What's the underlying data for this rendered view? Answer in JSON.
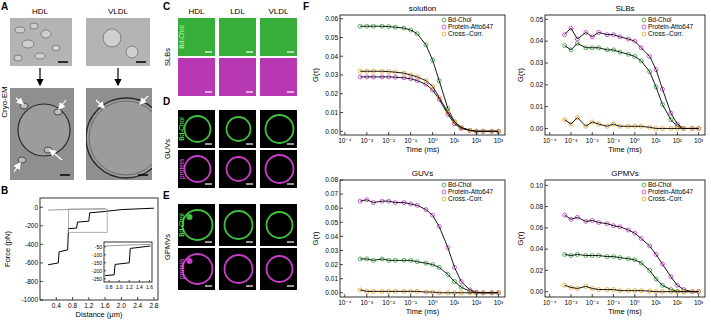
{
  "panel_labels": [
    "A",
    "B",
    "C",
    "D",
    "E",
    "F"
  ],
  "panel_a": {
    "columns": [
      "HDL",
      "VLDL"
    ],
    "row_label": "Cryo-EM"
  },
  "panel_cde": {
    "columns": [
      "HDL",
      "LDL",
      "VLDL"
    ],
    "rows": [
      {
        "label": "SLBs",
        "green_label": "Bd-Chol"
      },
      {
        "label": "GUVs",
        "green_label": "Bd-Chol",
        "magenta_label": "protein"
      },
      {
        "label": "GPMVs",
        "green_label": "Bd-Chol",
        "magenta_label": "protein"
      }
    ]
  },
  "chart_data": [
    {
      "type": "line",
      "xlabel": "Distance (µm)",
      "ylabel": "Force (pN)",
      "xlim": [
        0,
        2.9
      ],
      "ylim": [
        -1000,
        100
      ],
      "xticks": [
        0.4,
        0.8,
        1.2,
        1.6,
        {
          "value": 2,
          "label": "2.0"
        },
        2.4,
        2.8
      ],
      "yticks": [
        0,
        -200,
        -400,
        -600,
        -800,
        -1000
      ],
      "series": [
        {
          "color": "#000000",
          "x": [
            0.2,
            0.45,
            0.47,
            0.68,
            0.7,
            0.9,
            0.92,
            1.2,
            1.22,
            1.6,
            2.0,
            2.8
          ],
          "values": [
            -620,
            -600,
            -480,
            -460,
            -230,
            -225,
            -160,
            -150,
            -60,
            -45,
            -25,
            -10
          ]
        },
        {
          "color": "#9a9a9a",
          "x": [
            0.2,
            0.6,
            1.0,
            1.6
          ],
          "values": [
            -30,
            -25,
            -20,
            -15
          ]
        }
      ]
    },
    {
      "type": "line",
      "xlim": [
        0.7,
        1.65
      ],
      "ylim": [
        -270,
        -20
      ],
      "xticks": [
        0.8,
        {
          "value": 1,
          "label": "1.0"
        },
        1.2,
        1.4,
        1.6
      ],
      "yticks": [
        -50,
        -100,
        -150,
        -200,
        -250
      ],
      "series": [
        {
          "color": "#000000",
          "x": [
            0.72,
            0.9,
            0.92,
            1.2,
            1.22,
            1.62
          ],
          "values": [
            -230,
            -225,
            -160,
            -150,
            -60,
            -45
          ]
        },
        {
          "color": "#9a9a9a",
          "x": [
            0.72,
            1.1,
            1.62
          ],
          "values": [
            -45,
            -40,
            -35
          ]
        }
      ]
    },
    {
      "type": "scatter",
      "title": "solution",
      "xlabel": "Time (ms)",
      "ylabel": "G(τ)",
      "log": "x",
      "legend": "upper right",
      "xlim": [
        6e-05,
        2000
      ],
      "ylim": [
        -0.002,
        0.062
      ],
      "xticks": [
        {
          "value": 0.0001,
          "label": "10⁻⁴"
        },
        {
          "value": 0.001,
          "label": "10⁻³"
        },
        {
          "value": 0.01,
          "label": "10⁻²"
        },
        {
          "value": 0.1,
          "label": "10⁻¹"
        },
        {
          "value": 1,
          "label": "10⁰"
        },
        {
          "value": 10,
          "label": "10¹"
        },
        {
          "value": 100,
          "label": "10²"
        },
        {
          "value": 1000,
          "label": "10³"
        }
      ],
      "yticks": [
        {
          "value": 0,
          "label": "0.00"
        },
        0.01,
        0.02,
        0.03,
        0.04,
        0.05,
        0.06
      ],
      "x": [
        0.0005,
        0.001,
        0.002,
        0.005,
        0.01,
        0.02,
        0.05,
        0.1,
        0.2,
        0.5,
        1,
        2,
        5,
        10,
        20,
        50,
        100,
        200,
        500,
        1000
      ],
      "series": [
        {
          "name": "Bd-Chol",
          "color": "#3fae49",
          "marker": "circle",
          "line_style": "solid",
          "values": [
            0.056,
            0.056,
            0.056,
            0.056,
            0.0558,
            0.0555,
            0.055,
            0.054,
            0.052,
            0.046,
            0.038,
            0.027,
            0.012,
            0.005,
            0.002,
            0.0005,
            0,
            0,
            0,
            0
          ]
        },
        {
          "name": "Protein-Atto647",
          "color": "#d048d8",
          "marker": "circle",
          "line_style": "solid",
          "values": [
            0.029,
            0.029,
            0.029,
            0.029,
            0.029,
            0.0288,
            0.0285,
            0.028,
            0.027,
            0.025,
            0.022,
            0.017,
            0.009,
            0.004,
            0.0015,
            0.0005,
            0,
            0,
            0,
            0
          ]
        },
        {
          "name": "Cross.-Corr.",
          "color": "#f0a830",
          "marker": "circle",
          "line_style": "solid",
          "values": [
            0.032,
            0.032,
            0.032,
            0.032,
            0.0318,
            0.0315,
            0.031,
            0.03,
            0.029,
            0.027,
            0.024,
            0.018,
            0.01,
            0.005,
            0.002,
            0.0005,
            0,
            0,
            0,
            0
          ]
        }
      ]
    },
    {
      "type": "scatter",
      "title": "SLBs",
      "xlabel": "Time (ms)",
      "ylabel": "G(τ)",
      "log": "x",
      "legend": "upper right",
      "xlim": [
        6e-05,
        2000
      ],
      "ylim": [
        -0.003,
        0.052
      ],
      "xticks": [
        {
          "value": 0.0001,
          "label": "10⁻⁴"
        },
        {
          "value": 0.001,
          "label": "10⁻³"
        },
        {
          "value": 0.01,
          "label": "10⁻²"
        },
        {
          "value": 0.1,
          "label": "10⁻¹"
        },
        {
          "value": 1,
          "label": "10⁰"
        },
        {
          "value": 10,
          "label": "10¹"
        },
        {
          "value": 100,
          "label": "10²"
        },
        {
          "value": 1000,
          "label": "10³"
        }
      ],
      "yticks": [
        {
          "value": 0,
          "label": "0.00"
        },
        0.01,
        0.02,
        0.03,
        0.04,
        0.05
      ],
      "x": [
        0.0005,
        0.001,
        0.002,
        0.005,
        0.01,
        0.02,
        0.05,
        0.1,
        0.2,
        0.5,
        1,
        2,
        5,
        10,
        20,
        50,
        100,
        200,
        500,
        1000
      ],
      "series": [
        {
          "name": "Bd-Chol",
          "color": "#3fae49",
          "marker": "circle",
          "line_style": "solid",
          "values": [
            0.038,
            0.036,
            0.039,
            0.037,
            0.037,
            0.037,
            0.036,
            0.036,
            0.035,
            0.034,
            0.033,
            0.031,
            0.026,
            0.019,
            0.011,
            0.004,
            0.001,
            0,
            0,
            0
          ]
        },
        {
          "name": "Protein-Atto647",
          "color": "#d048d8",
          "marker": "circle",
          "line_style": "solid",
          "values": [
            0.043,
            0.046,
            0.041,
            0.044,
            0.042,
            0.044,
            0.043,
            0.043,
            0.042,
            0.041,
            0.04,
            0.037,
            0.033,
            0.027,
            0.018,
            0.007,
            0.002,
            0,
            0,
            0
          ]
        },
        {
          "name": "Cross.-Corr.",
          "color": "#f0a830",
          "marker": "circle",
          "line_style": "solid",
          "values": [
            0.004,
            0.002,
            0.005,
            0.001,
            0.003,
            0.002,
            0.001,
            0.002,
            0.001,
            0.001,
            0.001,
            0.001,
            0.0005,
            0,
            0,
            0,
            0,
            0,
            0,
            0
          ]
        }
      ]
    },
    {
      "type": "scatter",
      "title": "GUVs",
      "xlabel": "Time (ms)",
      "ylabel": "G(τ)",
      "log": "x",
      "legend": "upper right",
      "xlim": [
        6e-05,
        2000
      ],
      "ylim": [
        -0.003,
        0.08
      ],
      "xticks": [
        {
          "value": 0.0001,
          "label": "10⁻⁴"
        },
        {
          "value": 0.001,
          "label": "10⁻³"
        },
        {
          "value": 0.01,
          "label": "10⁻²"
        },
        {
          "value": 0.1,
          "label": "10⁻¹"
        },
        {
          "value": 1,
          "label": "10⁰"
        },
        {
          "value": 10,
          "label": "10¹"
        },
        {
          "value": 100,
          "label": "10²"
        },
        {
          "value": 1000,
          "label": "10³"
        }
      ],
      "yticks": [
        {
          "value": 0,
          "label": "0.00"
        },
        0.01,
        0.02,
        0.03,
        0.04,
        0.05,
        0.06,
        0.07,
        0.08
      ],
      "x": [
        0.0005,
        0.001,
        0.002,
        0.005,
        0.01,
        0.02,
        0.05,
        0.1,
        0.2,
        0.5,
        1,
        2,
        5,
        10,
        20,
        50,
        100,
        200,
        500,
        1000
      ],
      "series": [
        {
          "name": "Bd-Chol",
          "color": "#3fae49",
          "marker": "circle",
          "line_style": "solid",
          "values": [
            0.024,
            0.024,
            0.023,
            0.024,
            0.023,
            0.023,
            0.023,
            0.023,
            0.022,
            0.021,
            0.02,
            0.018,
            0.013,
            0.008,
            0.004,
            0.001,
            0,
            0,
            0,
            0
          ]
        },
        {
          "name": "Protein-Atto647",
          "color": "#d048d8",
          "marker": "circle",
          "line_style": "solid",
          "values": [
            0.065,
            0.066,
            0.064,
            0.065,
            0.065,
            0.064,
            0.064,
            0.063,
            0.062,
            0.059,
            0.055,
            0.047,
            0.032,
            0.018,
            0.008,
            0.002,
            0.0005,
            0,
            0,
            0
          ]
        },
        {
          "name": "Cross.-Corr.",
          "color": "#f0a830",
          "marker": "circle",
          "line_style": "solid",
          "values": [
            0.002,
            0.001,
            0.001,
            0.001,
            0.001,
            0.001,
            0.001,
            0.001,
            0.001,
            0.0005,
            0.0005,
            0,
            0,
            0,
            0,
            0,
            0,
            0,
            0,
            0
          ]
        }
      ]
    },
    {
      "type": "scatter",
      "title": "GPMVs",
      "xlabel": "Time (ms)",
      "ylabel": "G(τ)",
      "log": "x",
      "legend": "upper right",
      "xlim": [
        6e-05,
        2000
      ],
      "ylim": [
        -0.005,
        0.105
      ],
      "xticks": [
        {
          "value": 0.0001,
          "label": "10⁻⁴"
        },
        {
          "value": 0.001,
          "label": "10⁻³"
        },
        {
          "value": 0.01,
          "label": "10⁻²"
        },
        {
          "value": 0.1,
          "label": "10⁻¹"
        },
        {
          "value": 1,
          "label": "10⁰"
        },
        {
          "value": 10,
          "label": "10¹"
        },
        {
          "value": 100,
          "label": "10²"
        },
        {
          "value": 1000,
          "label": "10³"
        }
      ],
      "yticks": [
        {
          "value": 0,
          "label": "0.00"
        },
        0.02,
        0.04,
        0.06,
        0.08,
        {
          "value": 0.1,
          "label": "0.10"
        }
      ],
      "x": [
        0.0005,
        0.001,
        0.002,
        0.005,
        0.01,
        0.02,
        0.05,
        0.1,
        0.2,
        0.5,
        1,
        2,
        5,
        10,
        20,
        50,
        100,
        200,
        500,
        1000
      ],
      "series": [
        {
          "name": "Bd-Chol",
          "color": "#3fae49",
          "marker": "circle",
          "line_style": "solid",
          "values": [
            0.035,
            0.034,
            0.035,
            0.034,
            0.034,
            0.034,
            0.033,
            0.033,
            0.032,
            0.031,
            0.03,
            0.027,
            0.02,
            0.012,
            0.006,
            0.002,
            0.0005,
            0,
            0,
            0
          ]
        },
        {
          "name": "Protein-Atto647",
          "color": "#d048d8",
          "marker": "circle",
          "line_style": "solid",
          "values": [
            0.072,
            0.068,
            0.07,
            0.066,
            0.067,
            0.065,
            0.064,
            0.062,
            0.061,
            0.058,
            0.055,
            0.05,
            0.043,
            0.035,
            0.026,
            0.014,
            0.006,
            0.002,
            0,
            0
          ]
        },
        {
          "name": "Cross.-Corr.",
          "color": "#f0a830",
          "marker": "circle",
          "line_style": "solid",
          "values": [
            0.006,
            0.004,
            0.003,
            0.005,
            0.003,
            0.002,
            0.002,
            0.002,
            0.001,
            0.001,
            0.001,
            0.001,
            0.0005,
            0,
            0,
            0,
            0,
            0,
            0,
            0
          ]
        }
      ]
    }
  ]
}
